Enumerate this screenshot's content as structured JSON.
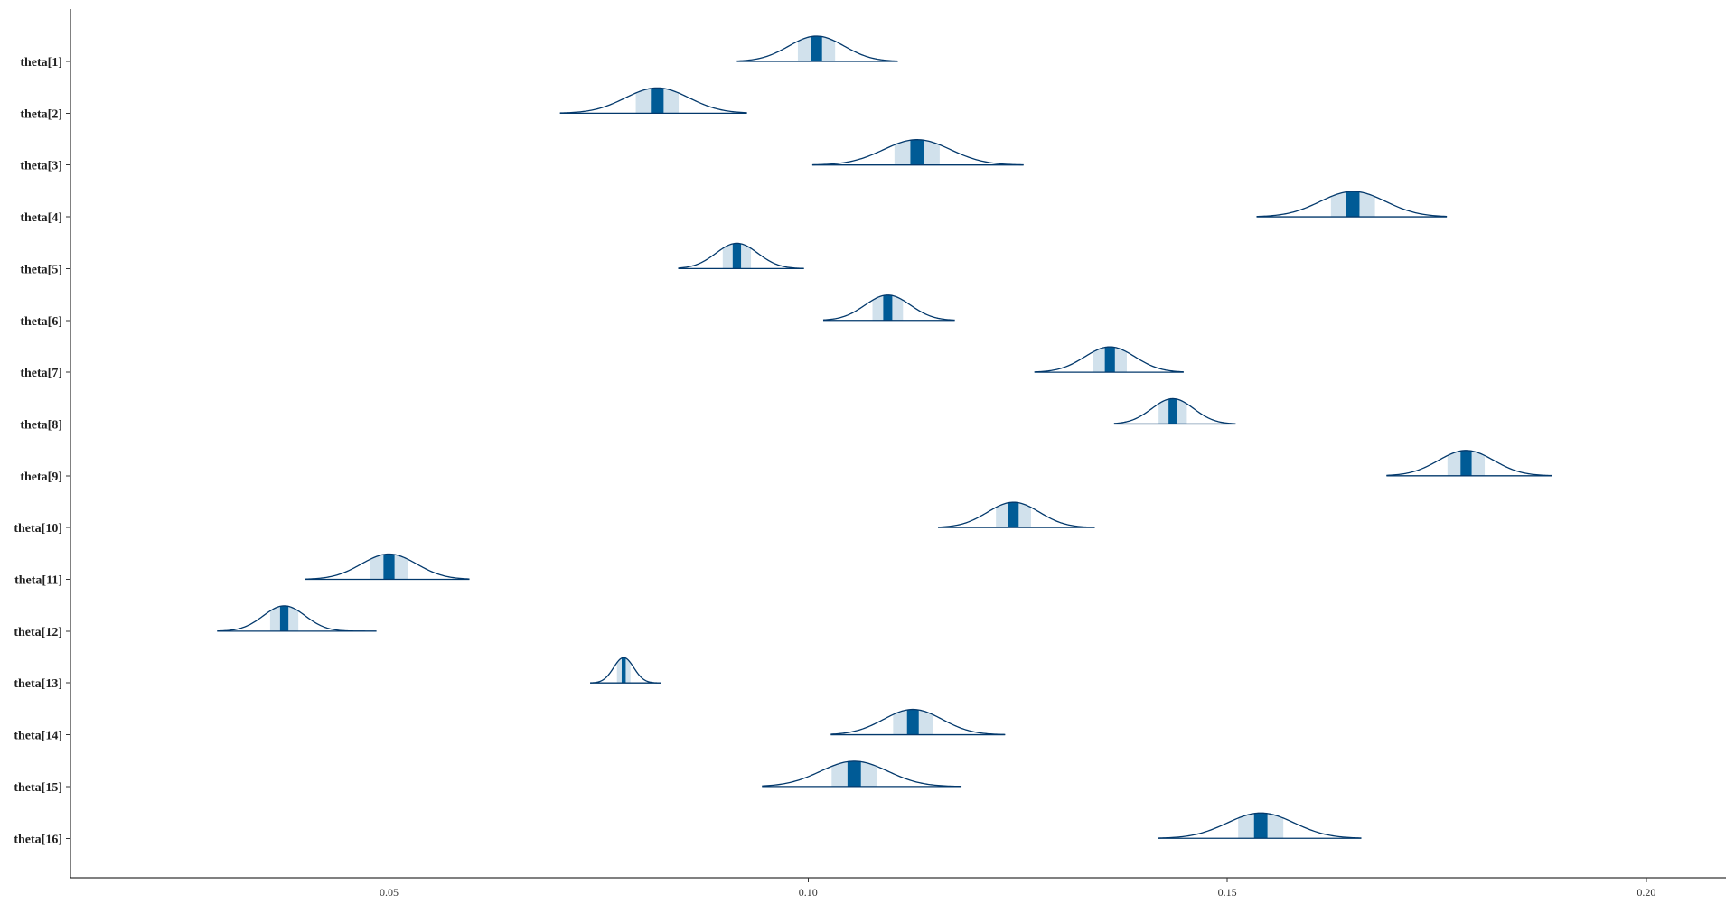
{
  "colors": {
    "outline": "#03396c",
    "inner": "#005b96",
    "outer_fill": "#d1e1ec",
    "axis": "#000000",
    "tick_label": "#333333"
  },
  "chart_data": {
    "type": "area",
    "title": "",
    "xlabel": "",
    "ylabel": "",
    "xlim": [
      0.012,
      0.2095
    ],
    "xticks": [
      0.05,
      0.1,
      0.15,
      0.2
    ],
    "xtick_labels": [
      "0.05",
      "0.10",
      "0.15",
      "0.20"
    ],
    "grid": false,
    "legend": "none",
    "parameters": [
      {
        "label": "theta[1]",
        "median": 0.101,
        "sd": 0.0033,
        "min": 0.0915,
        "max": 0.1107
      },
      {
        "label": "theta[2]",
        "median": 0.082,
        "sd": 0.0038,
        "min": 0.0704,
        "max": 0.0927
      },
      {
        "label": "theta[3]",
        "median": 0.113,
        "sd": 0.004,
        "min": 0.1005,
        "max": 0.1257
      },
      {
        "label": "theta[4]",
        "median": 0.165,
        "sd": 0.0039,
        "min": 0.1535,
        "max": 0.1762
      },
      {
        "label": "theta[5]",
        "median": 0.0915,
        "sd": 0.0025,
        "min": 0.0845,
        "max": 0.0995
      },
      {
        "label": "theta[6]",
        "median": 0.1095,
        "sd": 0.0027,
        "min": 0.1018,
        "max": 0.1175
      },
      {
        "label": "theta[7]",
        "median": 0.136,
        "sd": 0.003,
        "min": 0.127,
        "max": 0.1448
      },
      {
        "label": "theta[8]",
        "median": 0.1435,
        "sd": 0.0025,
        "min": 0.1365,
        "max": 0.151
      },
      {
        "label": "theta[9]",
        "median": 0.1785,
        "sd": 0.0033,
        "min": 0.169,
        "max": 0.1887
      },
      {
        "label": "theta[10]",
        "median": 0.1245,
        "sd": 0.0031,
        "min": 0.1155,
        "max": 0.1342
      },
      {
        "label": "theta[11]",
        "median": 0.05,
        "sd": 0.0033,
        "min": 0.04,
        "max": 0.0596
      },
      {
        "label": "theta[12]",
        "median": 0.0375,
        "sd": 0.0025,
        "min": 0.0295,
        "max": 0.0485
      },
      {
        "label": "theta[13]",
        "median": 0.078,
        "sd": 0.0012,
        "min": 0.074,
        "max": 0.0825
      },
      {
        "label": "theta[14]",
        "median": 0.1125,
        "sd": 0.0035,
        "min": 0.1027,
        "max": 0.1235
      },
      {
        "label": "theta[15]",
        "median": 0.1055,
        "sd": 0.004,
        "min": 0.0945,
        "max": 0.1183
      },
      {
        "label": "theta[16]",
        "median": 0.154,
        "sd": 0.004,
        "min": 0.1418,
        "max": 0.166
      }
    ]
  }
}
